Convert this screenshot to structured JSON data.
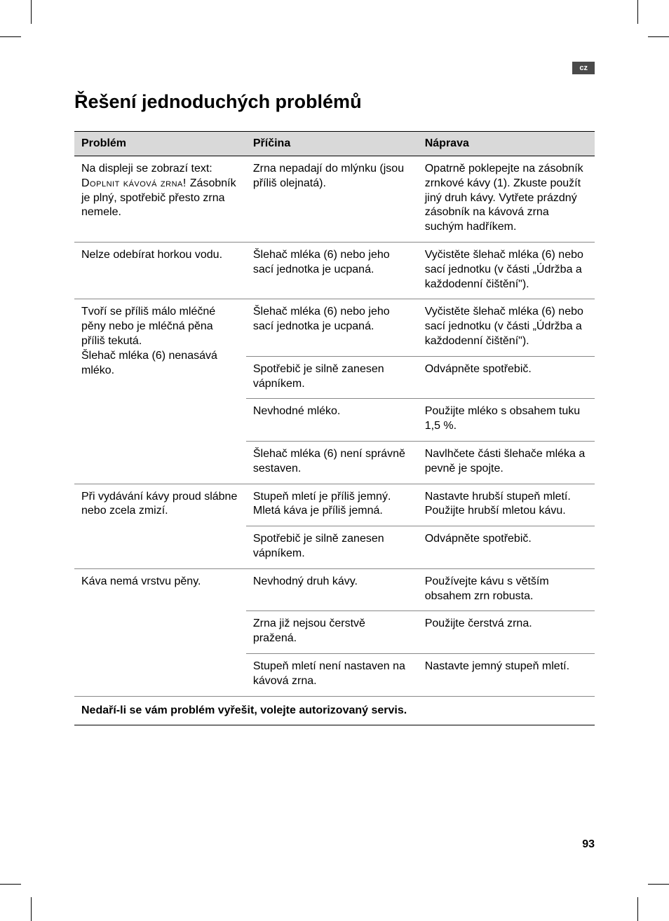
{
  "lang_code": "cz",
  "heading": "Řešení jednoduchých problémů",
  "table": {
    "headers": {
      "c1": "Problém",
      "c2": "Příčina",
      "c3": "Náprava"
    },
    "rows": [
      {
        "problem_pre": "Na displeji se zobrazí text: ",
        "problem_sc": "Doplnit kávová zrna! ",
        "problem_post": "Zásobník je plný, spotřebič přesto zrna nemele.",
        "cause": "Zrna nepadají do mlýnku (jsou příliš olejnatá).",
        "fix": "Opatrně poklepejte na zásobník zrnkové kávy (1). Zkuste použít jiný druh kávy. Vytřete prázdný zásobník na kávová zrna suchým hadříkem."
      },
      {
        "problem": "Nelze odebírat horkou vodu.",
        "cause": "Šlehač mléka (6) nebo jeho sací jednotka je ucpaná.",
        "fix": "Vyčistěte šlehač mléka (6) nebo sací jednotku (v části „Údržba a každodenní čištění\")."
      },
      {
        "problem": "Tvoří se příliš málo mléčné pěny nebo je mléčná pěna příliš tekutá.\nŠlehač mléka (6) nenasává mléko.",
        "cause": "Šlehač mléka (6) nebo jeho sací jednotka je ucpaná.",
        "fix": "Vyčistěte šlehač mléka (6) nebo sací jednotku (v části „Údržba a každodenní čištění\").",
        "rowspan_problem": 4
      },
      {
        "cause": "Spotřebič je silně zanesen vápníkem.",
        "fix": "Odvápněte spotřebič."
      },
      {
        "cause": "Nevhodné mléko.",
        "fix": "Použijte mléko s obsahem tuku 1,5 %."
      },
      {
        "cause": "Šlehač mléka (6) není správně sestaven.",
        "fix": "Navlhčete části šlehače mléka a pevně je spojte."
      },
      {
        "problem": "Při vydávání kávy proud slábne nebo zcela zmizí.",
        "cause": "Stupeň mletí je příliš jemný. Mletá káva je příliš jemná.",
        "fix": "Nastavte hrubší stupeň mletí. Použijte hrubší mletou kávu.",
        "rowspan_problem": 2
      },
      {
        "cause": "Spotřebič je silně zanesen vápníkem.",
        "fix": "Odvápněte spotřebič."
      },
      {
        "problem": "Káva nemá vrstvu pěny.",
        "cause": "Nevhodný druh kávy.",
        "fix": "Používejte kávu s větším obsahem zrn robusta.",
        "rowspan_problem": 3
      },
      {
        "cause": "Zrna již nejsou čerstvě pražená.",
        "fix": "Použijte čerstvá zrna."
      },
      {
        "cause": "Stupeň mletí není nastaven na kávová zrna.",
        "fix": "Nastavte jemný stupeň mletí."
      }
    ],
    "footer": "Nedaří-li se vám problém vyřešit, volejte autorizovaný servis."
  },
  "page_number": "93",
  "colors": {
    "header_bg": "#d9d9d9",
    "tab_bg": "#4a4a4a",
    "tab_fg": "#ffffff",
    "text": "#000000",
    "rule": "#888888"
  },
  "fonts": {
    "body_size_pt": 12,
    "heading_size_pt": 20
  }
}
